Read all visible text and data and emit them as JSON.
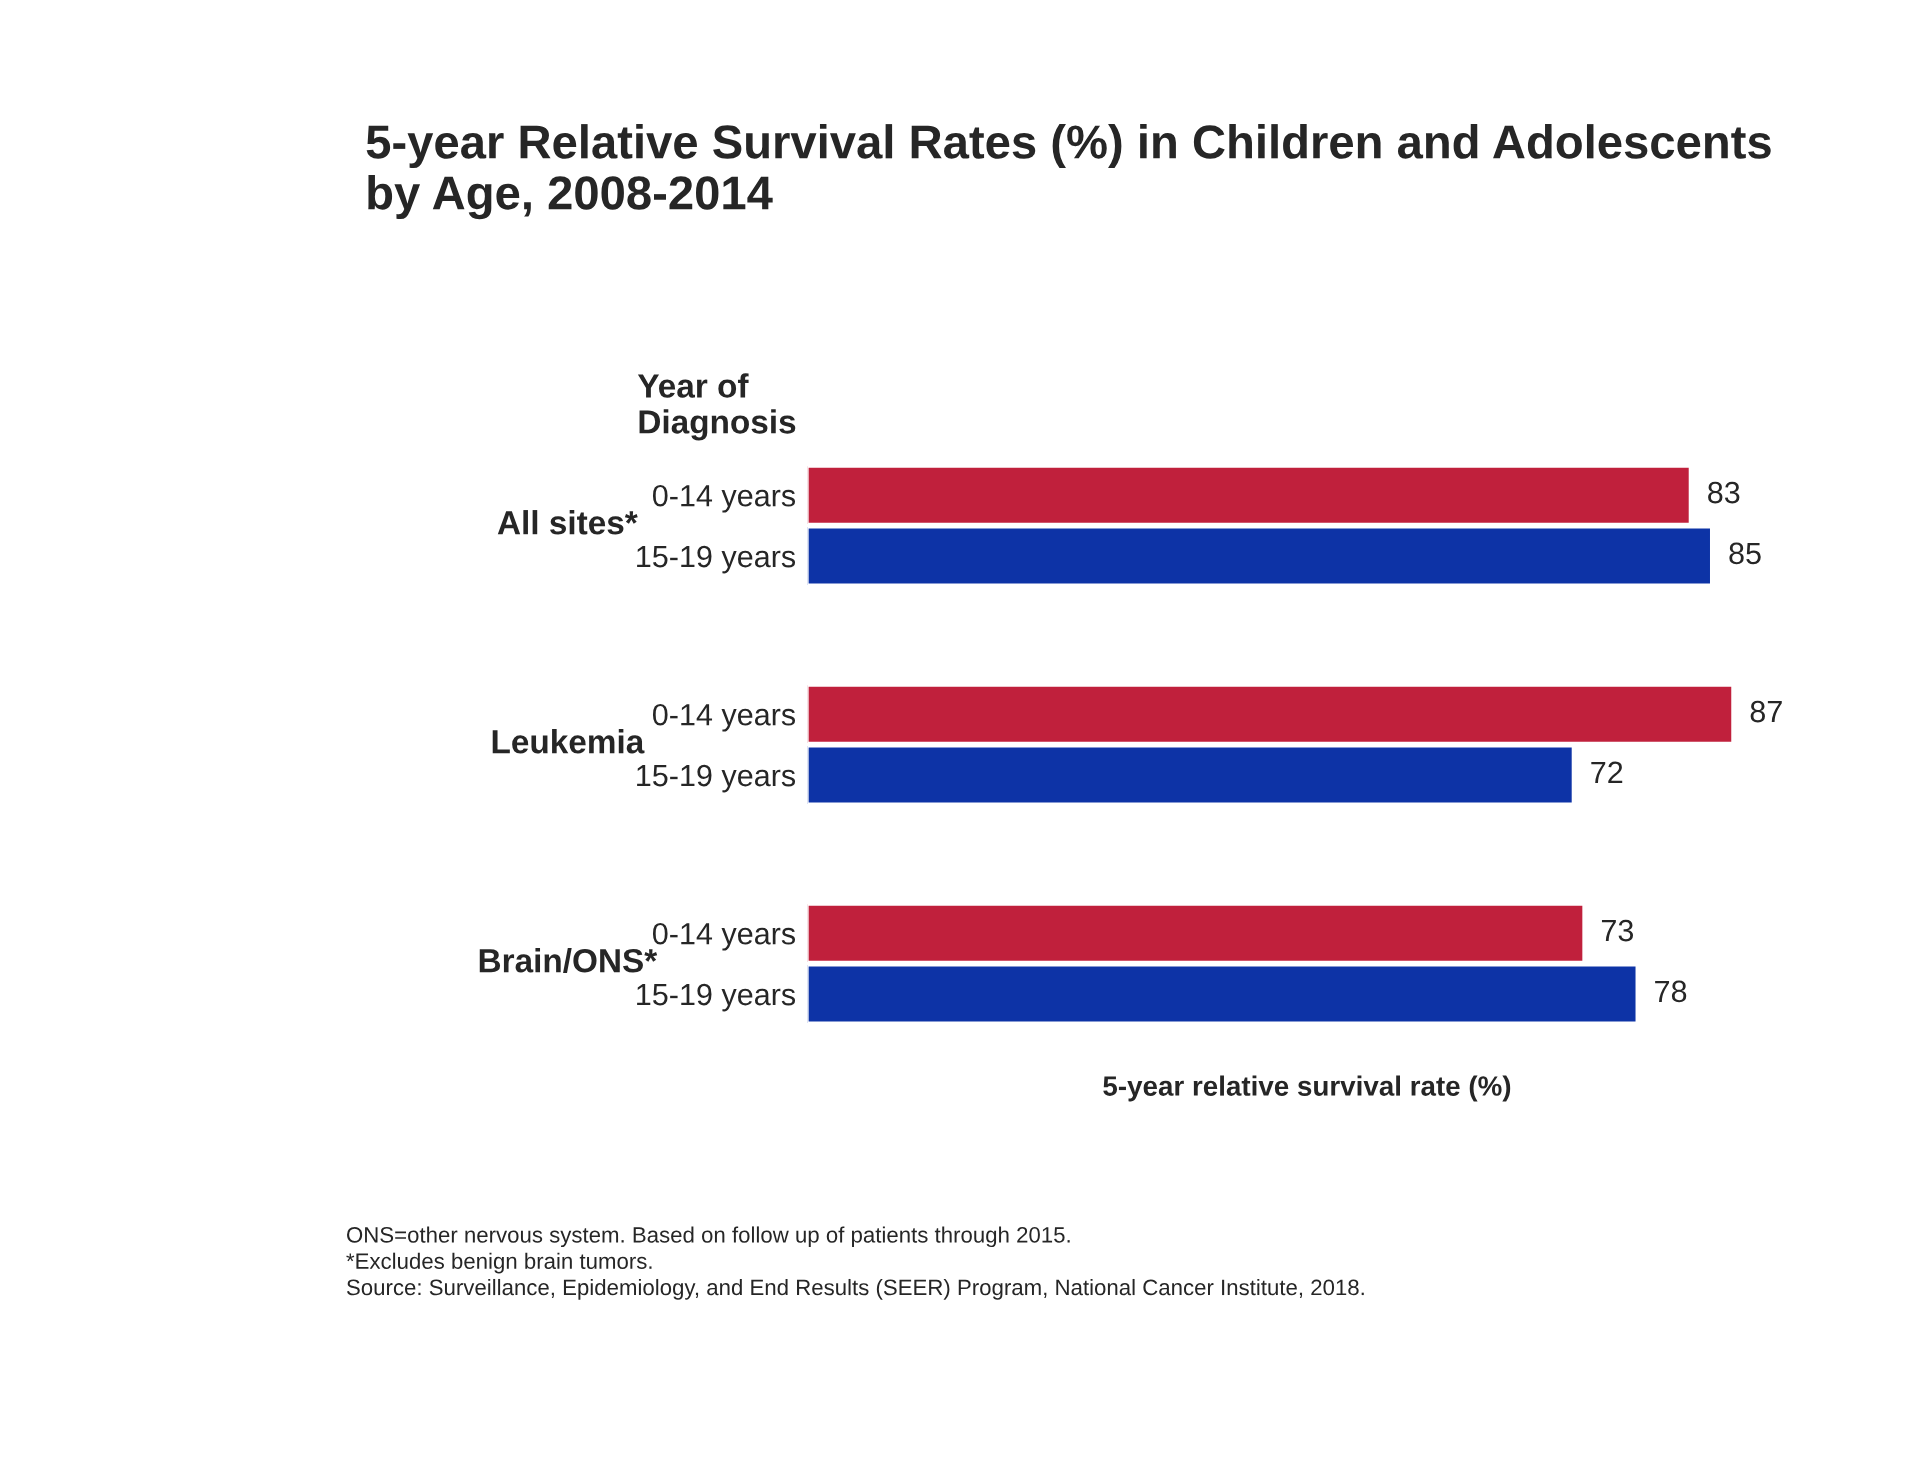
{
  "chart_data": {
    "type": "bar",
    "orientation": "horizontal",
    "title": "5-year Relative Survival Rates (%) in Children and Adolescents\nby Age, 2008-2014",
    "xlabel": "5-year relative survival rate (%)",
    "legend_title": "Year of\nDiagnosis",
    "categories": [
      "All sites*",
      "Leukemia",
      "Brain/ONS*"
    ],
    "series": [
      {
        "name": "0-14 years",
        "color": "#c0203c",
        "values": [
          83,
          87,
          73
        ]
      },
      {
        "name": "15-19 years",
        "color": "#0d33a6",
        "values": [
          85,
          72,
          78
        ]
      }
    ],
    "data_labels": true,
    "legend": false,
    "grid": false,
    "annotations": [
      "ONS=other nervous system. Based on follow up of patients through 2015.",
      "*Excludes benign brain tumors.",
      "Source: Surveillance, Epidemiology, and End Results (SEER) Program, National Cancer Institute, 2018."
    ]
  }
}
